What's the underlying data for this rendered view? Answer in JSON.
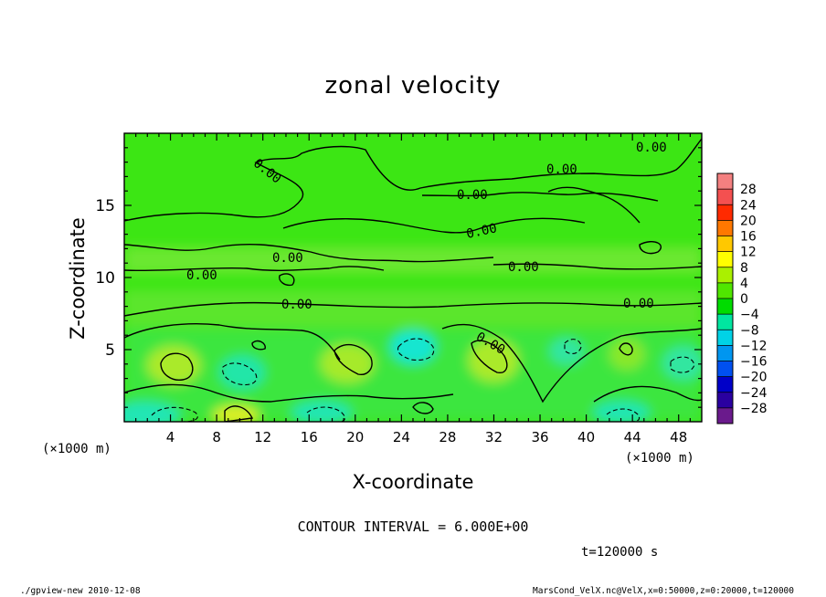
{
  "chart_data": {
    "type": "heatmap",
    "title": "zonal velocity",
    "xlabel": "X-coordinate",
    "ylabel": "Z-coordinate",
    "x_unit_left": "(×1000 m)",
    "x_unit_right": "(×1000 m)",
    "xlim": [
      0,
      50
    ],
    "ylim": [
      0,
      20
    ],
    "xticks": [
      "4",
      "8",
      "12",
      "16",
      "20",
      "24",
      "28",
      "32",
      "36",
      "40",
      "44",
      "48"
    ],
    "yticks": [
      "5",
      "10",
      "15"
    ],
    "colorbar": {
      "labels": [
        "28",
        "24",
        "20",
        "16",
        "12",
        "8",
        "4",
        "0",
        "−4",
        "−8",
        "−12",
        "−16",
        "−20",
        "−24",
        "−28"
      ],
      "colors": [
        "#f48080",
        "#f45050",
        "#ff2a00",
        "#ff7800",
        "#ffc800",
        "#ffff00",
        "#aaf000",
        "#50e600",
        "#00dc00",
        "#00e6a0",
        "#00d2e6",
        "#0096f0",
        "#0050f0",
        "#0000c8",
        "#2a00a0",
        "#6a1a8c"
      ]
    },
    "contour_labels": [
      "0.00",
      "0.00",
      "0.00",
      "0.00",
      "0.00",
      "0.00",
      "0.00",
      "0.00",
      "0.00",
      "0.00",
      "0.00"
    ],
    "contour_interval": "CONTOUR INTERVAL = 6.000E+00",
    "time_label": "t=120000 s",
    "footer_left": "./gpview-new  2010-12-08",
    "footer_right": "MarsCond_VelX.nc@VelX,x=0:50000,z=0:20000,t=120000"
  }
}
